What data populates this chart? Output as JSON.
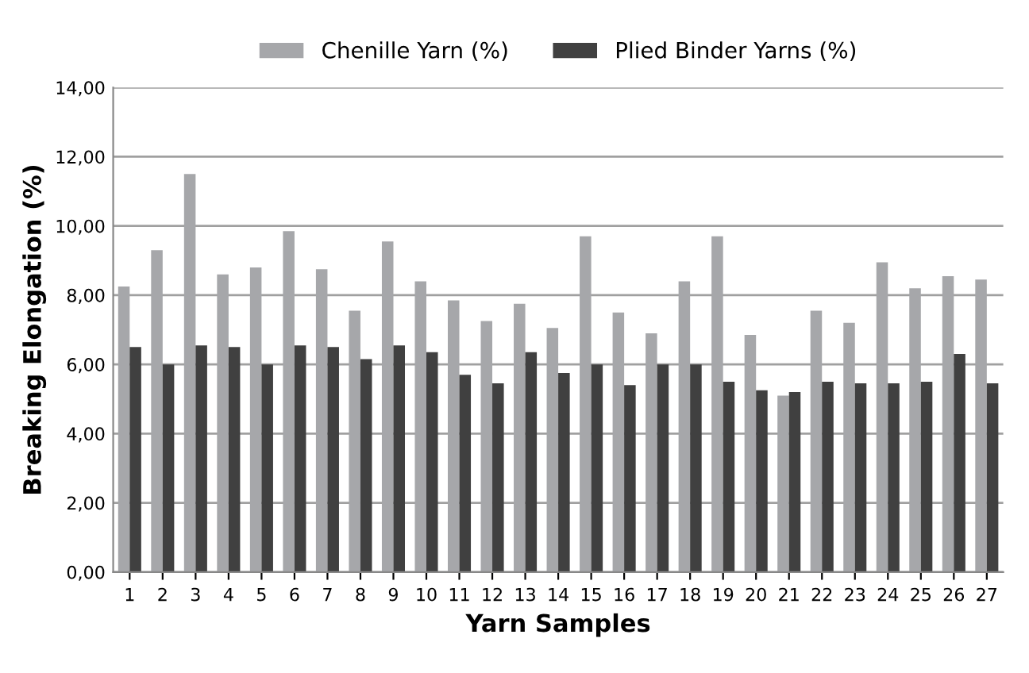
{
  "chart_data": {
    "type": "bar",
    "xlabel": "Yarn Samples",
    "ylabel": "Breaking Elongation (%)",
    "categories": [
      "1",
      "2",
      "3",
      "4",
      "5",
      "6",
      "7",
      "8",
      "9",
      "10",
      "11",
      "12",
      "13",
      "14",
      "15",
      "16",
      "17",
      "18",
      "19",
      "20",
      "21",
      "22",
      "23",
      "24",
      "25",
      "26",
      "27"
    ],
    "series": [
      {
        "name": "Chenille Yarn (%)",
        "color": "#a6a7aa",
        "values": [
          8.25,
          9.3,
          11.5,
          8.6,
          8.8,
          9.85,
          8.75,
          7.55,
          9.55,
          8.4,
          7.85,
          7.25,
          7.75,
          7.05,
          9.7,
          7.5,
          6.9,
          8.4,
          9.7,
          6.85,
          5.1,
          7.55,
          7.2,
          8.95,
          8.2,
          8.55,
          8.45
        ]
      },
      {
        "name": "Plied Binder Yarns (%)",
        "color": "#404040",
        "values": [
          6.5,
          6.0,
          6.55,
          6.5,
          6.0,
          6.55,
          6.5,
          6.15,
          6.55,
          6.35,
          5.7,
          5.45,
          6.35,
          5.75,
          6.0,
          5.4,
          6.0,
          6.0,
          5.5,
          5.25,
          5.2,
          5.5,
          5.45,
          5.45,
          5.5,
          6.3,
          5.45
        ]
      }
    ],
    "ylim": [
      0,
      14
    ],
    "yticks": [
      {
        "value": 0,
        "label": "0,00"
      },
      {
        "value": 2,
        "label": "2,00"
      },
      {
        "value": 4,
        "label": "4,00"
      },
      {
        "value": 6,
        "label": "6,00"
      },
      {
        "value": 8,
        "label": "8,00"
      },
      {
        "value": 10,
        "label": "10,00"
      },
      {
        "value": 12,
        "label": "12,00"
      },
      {
        "value": 14,
        "label": "14,00"
      }
    ],
    "grid": "y",
    "legend": "top"
  }
}
